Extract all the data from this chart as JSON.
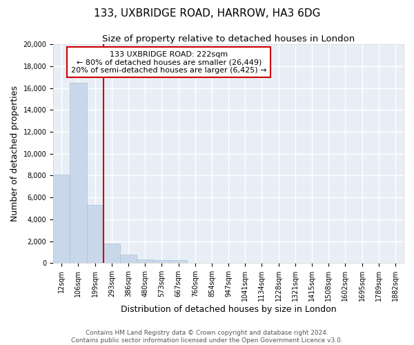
{
  "title": "133, UXBRIDGE ROAD, HARROW, HA3 6DG",
  "subtitle": "Size of property relative to detached houses in London",
  "xlabel": "Distribution of detached houses by size in London",
  "ylabel": "Number of detached properties",
  "property_label": "133 UXBRIDGE ROAD: 222sqm",
  "pct_smaller": 80,
  "count_smaller": 26449,
  "pct_larger_semi": 20,
  "count_larger_semi": 6425,
  "bin_labels": [
    "12sqm",
    "106sqm",
    "199sqm",
    "293sqm",
    "386sqm",
    "480sqm",
    "573sqm",
    "667sqm",
    "760sqm",
    "854sqm",
    "947sqm",
    "1041sqm",
    "1134sqm",
    "1228sqm",
    "1321sqm",
    "1415sqm",
    "1508sqm",
    "1602sqm",
    "1695sqm",
    "1789sqm",
    "1882sqm"
  ],
  "bar_values": [
    8100,
    16500,
    5300,
    1800,
    800,
    300,
    250,
    250,
    0,
    0,
    0,
    0,
    0,
    0,
    0,
    0,
    0,
    0,
    0,
    0,
    0
  ],
  "bar_color": "#c8d8ea",
  "bar_edge_color": "#a8bfd0",
  "vline_color": "#cc0000",
  "annotation_box_color": "#cc0000",
  "ylim": [
    0,
    20000
  ],
  "yticks": [
    0,
    2000,
    4000,
    6000,
    8000,
    10000,
    12000,
    14000,
    16000,
    18000,
    20000
  ],
  "bg_color": "#e8eef6",
  "grid_color": "#ffffff",
  "footer_line1": "Contains HM Land Registry data © Crown copyright and database right 2024.",
  "footer_line2": "Contains public sector information licensed under the Open Government Licence v3.0.",
  "title_fontsize": 11,
  "subtitle_fontsize": 9.5,
  "axis_label_fontsize": 9,
  "tick_fontsize": 7,
  "annotation_fontsize": 8,
  "footer_fontsize": 6.5
}
